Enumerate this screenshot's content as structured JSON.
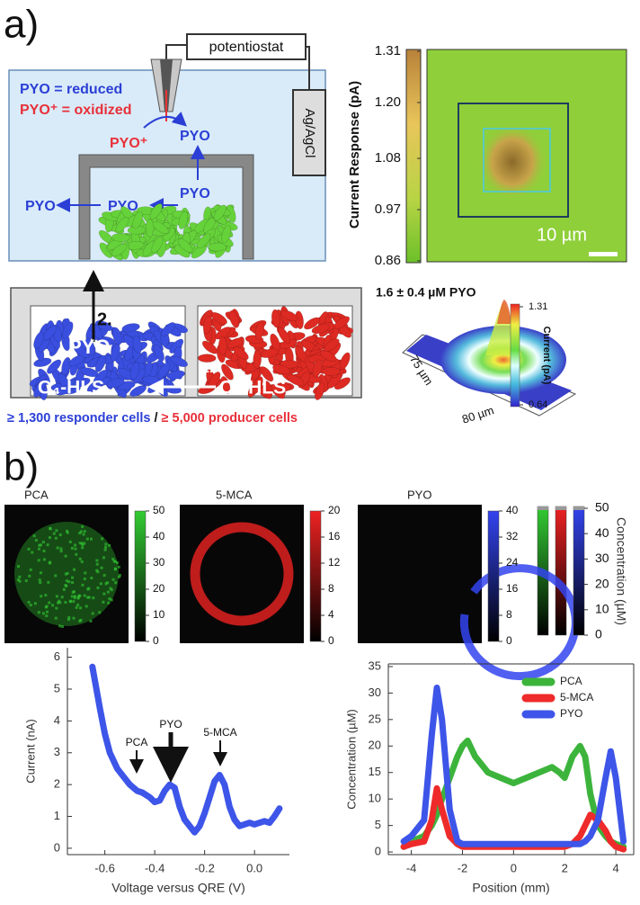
{
  "panel_a": {
    "label": "a)",
    "schematic": {
      "instrument": "potentiostat",
      "reference_electrode": "Ag/AgCl",
      "key_reduced": "PYO = reduced",
      "key_oxidized": "PYO⁺ = oxidized",
      "oxidized_species": "PYO⁺",
      "reduced_species": [
        "PYO",
        "PYO",
        "PYO",
        "PYO"
      ]
    },
    "current_map": {
      "colorbar_label": "Current Response (pA)",
      "colorbar_ticks": [
        1.31,
        {
          "value": 1.2,
          "label": "1.20"
        },
        1.08,
        0.97,
        0.86
      ],
      "scale_bar": "10 µm"
    },
    "coculture": {
      "step_2": "2.",
      "step_1": "1.",
      "signal": "PYO",
      "autoinducers": [
        "C₄-HLS",
        "C₄-HLS"
      ],
      "responder_count": "≥ 1,300 responder cells",
      "separator": "/",
      "producer_count": "≥ 5,000 producer cells"
    },
    "surface_plot": {
      "title": "1.6 ± 0.4 µM PYO",
      "colorbar_label": "Current (pA)",
      "colorbar_ticks": [
        1.31,
        0.64
      ],
      "y_extent": "75 µm",
      "x_extent": "80 µm"
    }
  },
  "panel_b": {
    "label": "b)",
    "maps": [
      {
        "title": "PCA",
        "color": "#33cc33",
        "colorbar_ticks": [
          50,
          40,
          30,
          20,
          10,
          0
        ]
      },
      {
        "title": "5-MCA",
        "color": "#ee2222",
        "colorbar_ticks": [
          20,
          16,
          12,
          8,
          4,
          0
        ]
      },
      {
        "title": "PYO",
        "color": "#3344ee",
        "colorbar_ticks": [
          40,
          32,
          24,
          16,
          8,
          0
        ]
      }
    ],
    "combined_colorbar": {
      "label": "Concentration (µM)",
      "ticks": [
        50,
        40,
        30,
        20,
        10,
        0
      ]
    }
  },
  "chart_data": [
    {
      "type": "line",
      "x_label": "Voltage versus QRE (V)",
      "y_label": "Current (nA)",
      "x": [
        -0.65,
        -0.62,
        -0.6,
        -0.58,
        -0.55,
        -0.52,
        -0.5,
        -0.47,
        -0.45,
        -0.42,
        -0.4,
        -0.38,
        -0.36,
        -0.34,
        -0.32,
        -0.3,
        -0.28,
        -0.26,
        -0.24,
        -0.22,
        -0.2,
        -0.18,
        -0.16,
        -0.14,
        -0.12,
        -0.1,
        -0.08,
        -0.06,
        -0.04,
        -0.02,
        0.0,
        0.02,
        0.04,
        0.06,
        0.08,
        0.1
      ],
      "series": [
        {
          "color": "#3d55e8",
          "values": [
            5.7,
            4.4,
            3.6,
            3.0,
            2.5,
            2.2,
            2.0,
            1.8,
            1.75,
            1.6,
            1.45,
            1.5,
            1.8,
            2.0,
            1.9,
            1.3,
            0.9,
            0.7,
            0.5,
            0.7,
            1.1,
            1.6,
            2.1,
            2.3,
            2.0,
            1.3,
            0.9,
            0.7,
            0.75,
            0.8,
            0.75,
            0.8,
            0.85,
            0.8,
            1.0,
            1.25
          ]
        }
      ],
      "xlim": [
        -0.75,
        0.14
      ],
      "ylim": [
        -0.2,
        6.3
      ],
      "xticks": [
        -0.6,
        -0.4,
        -0.2,
        {
          "value": 0,
          "label": "0.0"
        }
      ],
      "yticks": [
        0,
        1,
        2,
        3,
        4,
        5,
        6
      ],
      "annotations": [
        "PCA",
        "PYO",
        "5-MCA"
      ]
    },
    {
      "type": "line",
      "x_label": "Position (mm)",
      "y_label": "Concentration (µM)",
      "x": [
        -4.3,
        -4,
        -3.5,
        -3.2,
        -3,
        -2.8,
        -2.5,
        -2.2,
        -2,
        -1.8,
        -1.5,
        -1,
        -0.5,
        0,
        0.5,
        1,
        1.5,
        1.8,
        2,
        2.3,
        2.6,
        2.8,
        3,
        3.3,
        3.6,
        3.8,
        4,
        4.3
      ],
      "series": [
        {
          "name": "PCA",
          "color": "#3cb43c",
          "values": [
            1,
            2,
            3,
            5,
            7,
            10,
            14,
            18,
            20,
            21,
            18,
            15,
            14,
            13,
            14,
            15,
            16,
            15,
            14,
            18,
            20,
            18,
            11,
            5,
            3,
            2,
            1.5,
            1
          ]
        },
        {
          "name": "5-MCA",
          "color": "#ee2a2a",
          "values": [
            1,
            1.5,
            2,
            6,
            12,
            8,
            3,
            1.5,
            1,
            1,
            1,
            1,
            1,
            1,
            1,
            1,
            1,
            1,
            1,
            1.5,
            3,
            5,
            7,
            6,
            4,
            2,
            1,
            0.5
          ]
        },
        {
          "name": "PYO",
          "color": "#3d55e8",
          "values": [
            2,
            3,
            6,
            22,
            31,
            25,
            8,
            2,
            1.5,
            1.5,
            1.5,
            1.5,
            1.5,
            1.5,
            1.5,
            1.5,
            1.5,
            1.5,
            1.5,
            1.5,
            1.5,
            2,
            3,
            6,
            14,
            19,
            14,
            2
          ]
        }
      ],
      "xlim": [
        -4.9,
        4.7
      ],
      "ylim": [
        -0.5,
        35.5
      ],
      "xticks": [
        -4,
        -2,
        0,
        2,
        4
      ],
      "yticks": [
        0,
        5,
        10,
        15,
        20,
        25,
        30,
        35
      ],
      "legend": "upper right"
    }
  ]
}
